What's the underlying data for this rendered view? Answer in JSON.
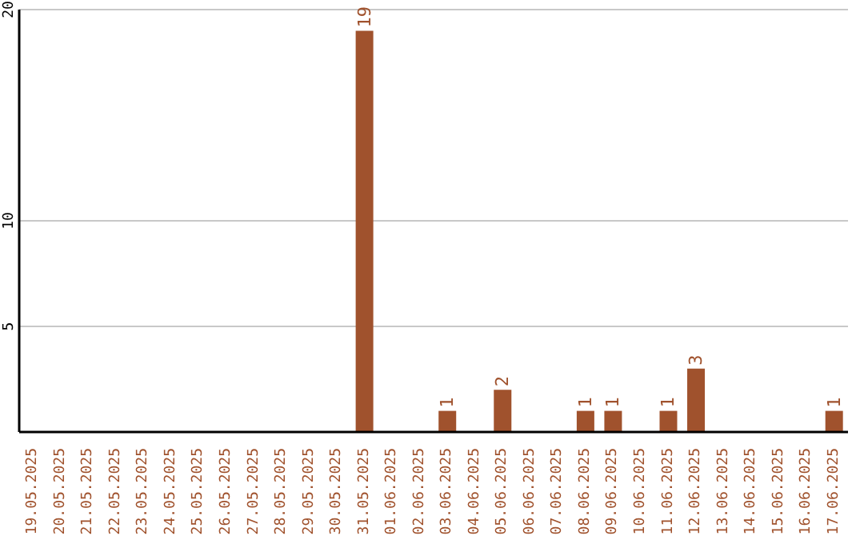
{
  "chart_data": {
    "type": "bar",
    "categories": [
      "19.05.2025",
      "20.05.2025",
      "21.05.2025",
      "22.05.2025",
      "23.05.2025",
      "24.05.2025",
      "25.05.2025",
      "26.05.2025",
      "27.05.2025",
      "28.05.2025",
      "29.05.2025",
      "30.05.2025",
      "31.05.2025",
      "01.06.2025",
      "02.06.2025",
      "03.06.2025",
      "04.06.2025",
      "05.06.2025",
      "06.06.2025",
      "07.06.2025",
      "08.06.2025",
      "09.06.2025",
      "10.06.2025",
      "11.06.2025",
      "12.06.2025",
      "13.06.2025",
      "14.06.2025",
      "15.06.2025",
      "16.06.2025",
      "17.06.2025"
    ],
    "values": [
      0,
      0,
      0,
      0,
      0,
      0,
      0,
      0,
      0,
      0,
      0,
      0,
      19,
      0,
      0,
      1,
      0,
      2,
      0,
      0,
      1,
      1,
      0,
      1,
      3,
      0,
      0,
      0,
      0,
      1
    ],
    "value_labels": [
      null,
      null,
      null,
      null,
      null,
      null,
      null,
      null,
      null,
      null,
      null,
      null,
      "19",
      null,
      null,
      "1",
      null,
      "2",
      null,
      null,
      "1",
      "1",
      null,
      "1",
      "3",
      null,
      null,
      null,
      null,
      "1"
    ],
    "color": "#a0522d",
    "ylim": [
      0,
      20
    ],
    "yticks": [
      5,
      10,
      20
    ],
    "grid": "y"
  }
}
